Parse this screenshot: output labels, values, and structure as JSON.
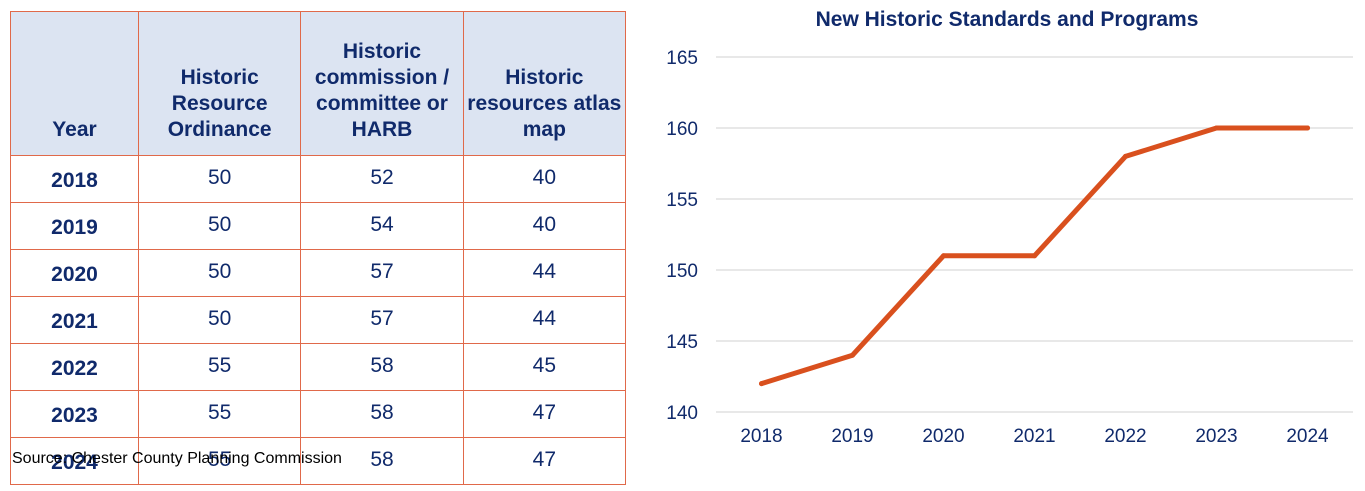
{
  "table": {
    "headers": [
      "Year",
      "Historic Resource Ordinance",
      "Historic commission / committee or HARB",
      "Historic resources atlas map"
    ],
    "rows": [
      [
        "2018",
        "50",
        "52",
        "40"
      ],
      [
        "2019",
        "50",
        "54",
        "40"
      ],
      [
        "2020",
        "50",
        "57",
        "44"
      ],
      [
        "2021",
        "50",
        "57",
        "44"
      ],
      [
        "2022",
        "55",
        "58",
        "45"
      ],
      [
        "2023",
        "55",
        "58",
        "47"
      ],
      [
        "2024",
        "55",
        "58",
        "47"
      ]
    ]
  },
  "source": "Source: Chester County Planning Commission",
  "colors": {
    "table_border": "#e0694a",
    "header_fill": "#dce4f2",
    "text": "#102a6b",
    "line": "#d9501e",
    "grid": "#d9d9d9"
  },
  "chart_data": {
    "type": "line",
    "title": "New Historic Standards and Programs",
    "x": [
      "2018",
      "2019",
      "2020",
      "2021",
      "2022",
      "2023",
      "2024"
    ],
    "series": [
      {
        "values": [
          142,
          144,
          151,
          151,
          158,
          160,
          160
        ]
      }
    ],
    "xlabel": "",
    "ylabel": "",
    "ylim": [
      140,
      165
    ],
    "yticks": [
      140,
      145,
      150,
      155,
      160,
      165
    ],
    "grid": true,
    "legend": "none"
  }
}
